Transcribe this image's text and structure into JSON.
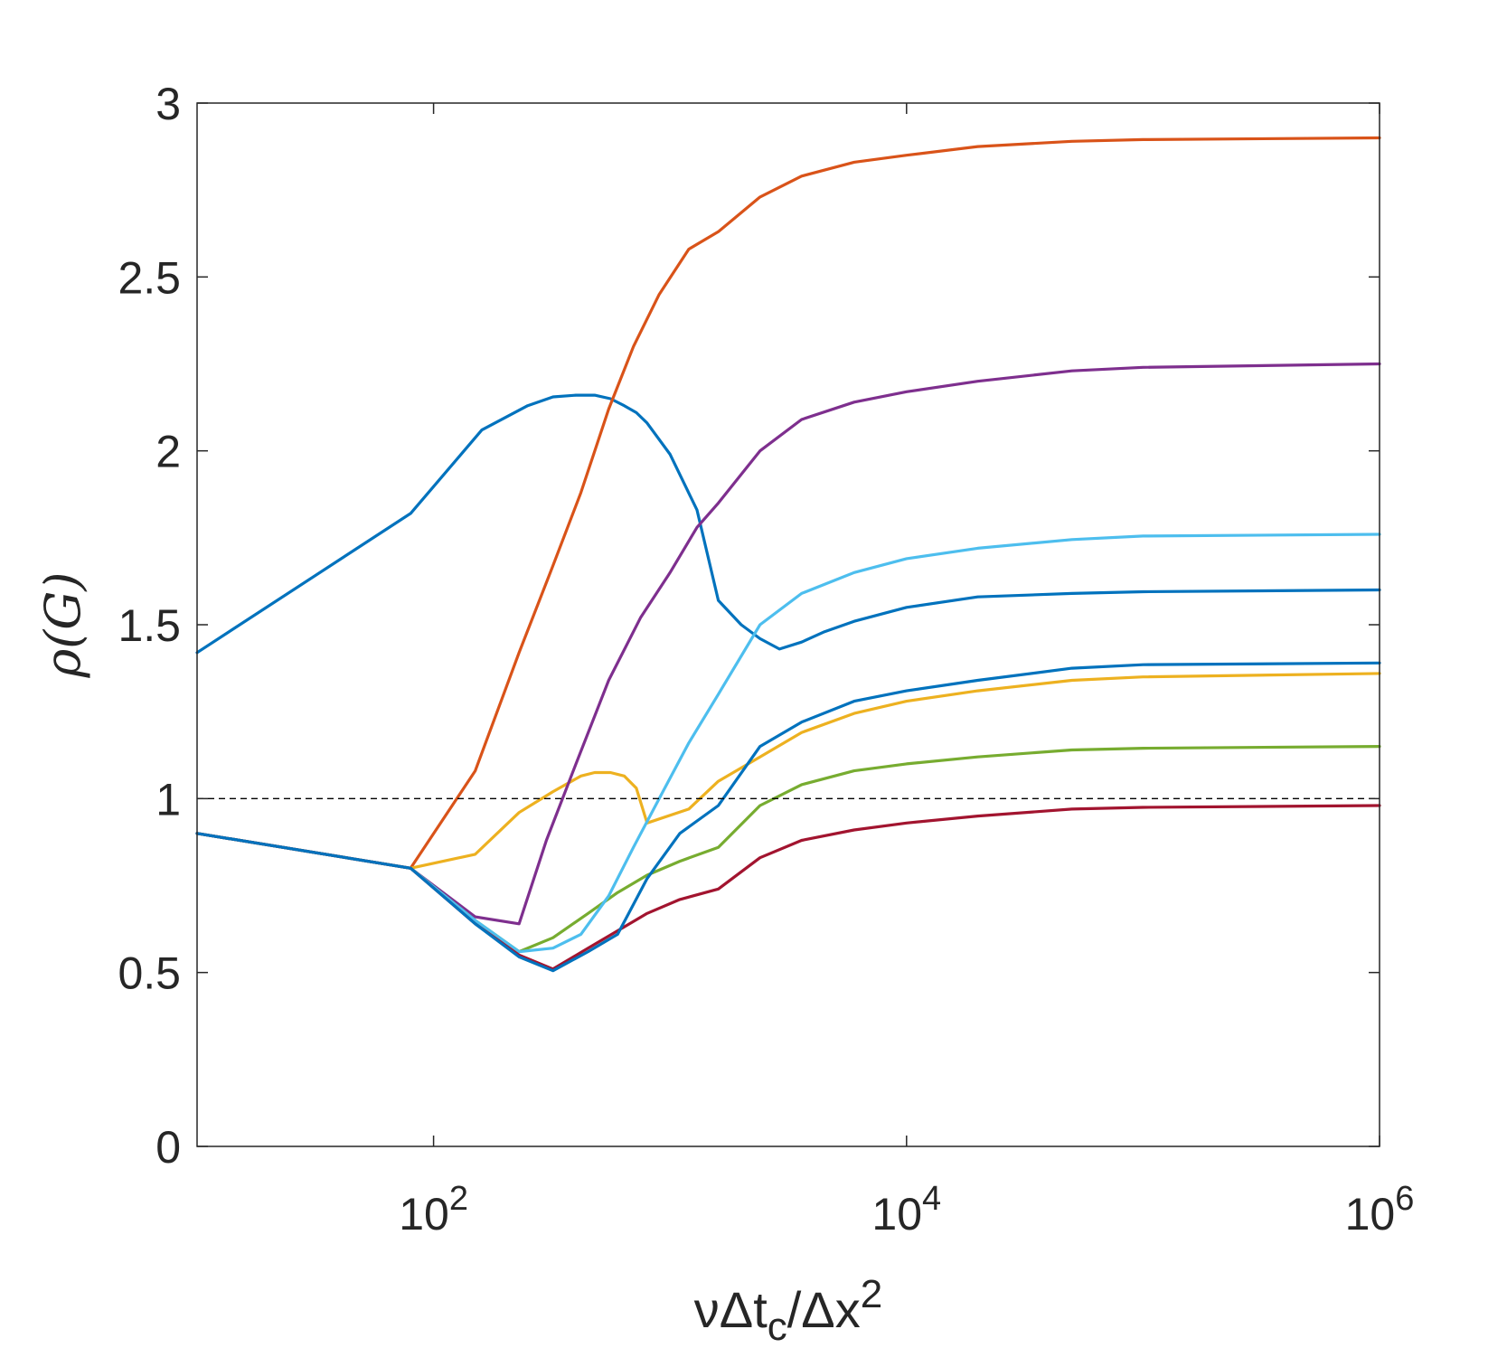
{
  "chart_data": {
    "type": "line",
    "xscale": "log",
    "xlim": [
      10,
      1000000
    ],
    "ylim": [
      0,
      3
    ],
    "grid": false,
    "legend": "none",
    "xlabel": {
      "pre": "νΔt",
      "sub": "c",
      "mid": "/Δx",
      "sup": "2"
    },
    "ylabel": "ρ(G)",
    "x_ticks": [
      {
        "value": 100,
        "base": "10",
        "exp": "2"
      },
      {
        "value": 10000,
        "base": "10",
        "exp": "4"
      },
      {
        "value": 1000000,
        "base": "10",
        "exp": "6"
      }
    ],
    "y_ticks": [
      {
        "value": 0,
        "label": "0"
      },
      {
        "value": 0.5,
        "label": "0.5"
      },
      {
        "value": 1,
        "label": "1"
      },
      {
        "value": 1.5,
        "label": "1.5"
      },
      {
        "value": 2,
        "label": "2"
      },
      {
        "value": 2.5,
        "label": "2.5"
      },
      {
        "value": 3,
        "label": "3"
      }
    ],
    "reference_line": {
      "y": 1,
      "style": "dashed",
      "color": "#000000"
    },
    "series": [
      {
        "color": "#0072BD",
        "x": [
          10,
          80,
          160,
          250,
          320,
          400,
          480,
          560,
          640,
          720,
          800,
          1000,
          1300,
          1600,
          2000,
          2400,
          2900,
          3600,
          4500,
          6000,
          10000,
          20000,
          50000,
          100000,
          1000000
        ],
        "y": [
          1.42,
          1.82,
          2.06,
          2.13,
          2.155,
          2.16,
          2.16,
          2.15,
          2.13,
          2.11,
          2.08,
          1.99,
          1.83,
          1.57,
          1.5,
          1.46,
          1.43,
          1.45,
          1.48,
          1.51,
          1.55,
          1.58,
          1.59,
          1.595,
          1.6
        ]
      },
      {
        "color": "#D95319",
        "x": [
          10,
          80,
          150,
          230,
          320,
          420,
          550,
          700,
          900,
          1200,
          1600,
          2400,
          3600,
          6000,
          10000,
          20000,
          50000,
          100000,
          1000000
        ],
        "y": [
          0.9,
          0.8,
          1.08,
          1.42,
          1.67,
          1.88,
          2.12,
          2.3,
          2.45,
          2.58,
          2.63,
          2.73,
          2.79,
          2.83,
          2.85,
          2.875,
          2.89,
          2.895,
          2.9
        ]
      },
      {
        "color": "#EDB120",
        "x": [
          10,
          80,
          150,
          230,
          320,
          420,
          480,
          560,
          640,
          720,
          800,
          1200,
          1600,
          2400,
          3600,
          6000,
          10000,
          20000,
          50000,
          100000,
          1000000
        ],
        "y": [
          0.9,
          0.8,
          0.84,
          0.96,
          1.02,
          1.065,
          1.075,
          1.075,
          1.065,
          1.03,
          0.93,
          0.97,
          1.05,
          1.12,
          1.19,
          1.245,
          1.28,
          1.31,
          1.34,
          1.35,
          1.36
        ]
      },
      {
        "color": "#7E2F8E",
        "x": [
          10,
          80,
          150,
          230,
          300,
          400,
          550,
          750,
          1000,
          1300,
          1600,
          2400,
          3600,
          6000,
          10000,
          20000,
          50000,
          100000,
          1000000
        ],
        "y": [
          0.9,
          0.8,
          0.66,
          0.64,
          0.88,
          1.1,
          1.34,
          1.52,
          1.65,
          1.78,
          1.85,
          2.0,
          2.09,
          2.14,
          2.17,
          2.2,
          2.23,
          2.24,
          2.25
        ]
      },
      {
        "color": "#77AC30",
        "x": [
          10,
          80,
          150,
          230,
          320,
          450,
          600,
          800,
          1100,
          1600,
          2400,
          3600,
          6000,
          10000,
          20000,
          50000,
          100000,
          1000000
        ],
        "y": [
          0.9,
          0.8,
          0.65,
          0.56,
          0.6,
          0.67,
          0.73,
          0.78,
          0.82,
          0.86,
          0.98,
          1.04,
          1.08,
          1.1,
          1.12,
          1.14,
          1.145,
          1.15
        ]
      },
      {
        "color": "#4DBEEE",
        "x": [
          10,
          80,
          150,
          230,
          320,
          420,
          550,
          700,
          900,
          1200,
          1600,
          2400,
          3600,
          6000,
          10000,
          20000,
          50000,
          100000,
          1000000
        ],
        "y": [
          0.9,
          0.8,
          0.65,
          0.56,
          0.57,
          0.61,
          0.72,
          0.86,
          1.0,
          1.16,
          1.3,
          1.5,
          1.59,
          1.65,
          1.69,
          1.72,
          1.745,
          1.755,
          1.76
        ]
      },
      {
        "color": "#A2142F",
        "x": [
          10,
          80,
          150,
          230,
          320,
          450,
          600,
          800,
          1100,
          1600,
          2400,
          3600,
          6000,
          10000,
          20000,
          50000,
          100000,
          1000000
        ],
        "y": [
          0.9,
          0.8,
          0.64,
          0.55,
          0.51,
          0.57,
          0.62,
          0.67,
          0.71,
          0.74,
          0.83,
          0.88,
          0.91,
          0.93,
          0.95,
          0.97,
          0.975,
          0.98
        ]
      },
      {
        "color": "#0072BD",
        "x": [
          10,
          80,
          150,
          230,
          320,
          450,
          600,
          800,
          1100,
          1600,
          2400,
          3600,
          6000,
          10000,
          20000,
          50000,
          100000,
          1000000
        ],
        "y": [
          0.9,
          0.8,
          0.64,
          0.545,
          0.505,
          0.56,
          0.61,
          0.77,
          0.9,
          0.98,
          1.15,
          1.22,
          1.28,
          1.31,
          1.34,
          1.375,
          1.385,
          1.39
        ]
      }
    ]
  }
}
